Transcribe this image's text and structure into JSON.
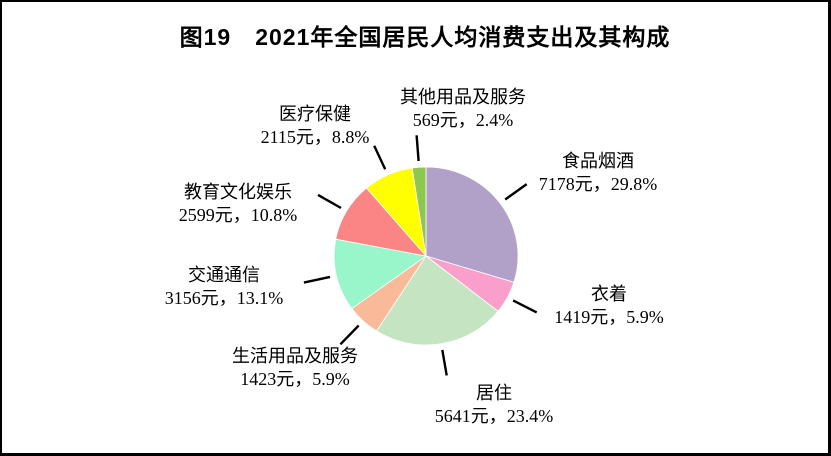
{
  "figure": {
    "title": "图19　2021年全国居民人均消费支出及其构成"
  },
  "chart_data": {
    "type": "pie",
    "title": "2021年全国居民人均消费支出及其构成",
    "unit": "元",
    "start_angle_deg_clockwise_from_top": 0,
    "categories": [
      "食品烟酒",
      "衣着",
      "居住",
      "生活用品及服务",
      "交通通信",
      "教育文化娱乐",
      "医疗保健",
      "其他用品及服务"
    ],
    "values": [
      7178,
      1419,
      5641,
      1423,
      3156,
      2599,
      2115,
      569
    ],
    "percents": [
      29.8,
      5.9,
      23.4,
      5.9,
      13.1,
      10.8,
      8.8,
      2.4
    ],
    "colors": [
      "#B1A0C7",
      "#FA9ECB",
      "#C5E5C2",
      "#F9BA9A",
      "#99F6CB",
      "#FB8584",
      "#FFFF00",
      "#8CC750"
    ],
    "slice_ids": [
      "food-tobacco-alcohol",
      "clothing",
      "housing",
      "household-goods-services",
      "transport-communication",
      "education-culture-entertainment",
      "healthcare",
      "other-goods-services"
    ],
    "labels": [
      {
        "name": "食品烟酒",
        "detail": "7178元，29.8%"
      },
      {
        "name": "衣着",
        "detail": "1419元，5.9%"
      },
      {
        "name": "居住",
        "detail": "5641元，23.4%"
      },
      {
        "name": "生活用品及服务",
        "detail": "1423元，5.9%"
      },
      {
        "name": "交通通信",
        "detail": "3156元，13.1%"
      },
      {
        "name": "教育文化娱乐",
        "detail": "2599元，10.8%"
      },
      {
        "name": "医疗保健",
        "detail": "2115元，8.8%"
      },
      {
        "name": "其他用品及服务",
        "detail": "569元，2.4%"
      }
    ]
  }
}
